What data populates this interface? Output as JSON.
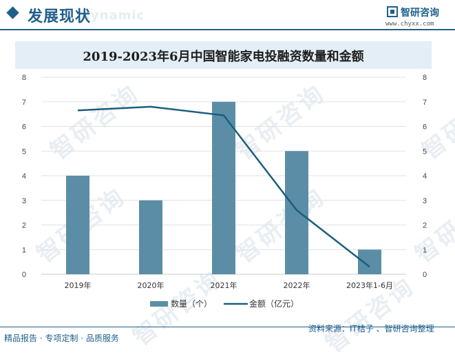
{
  "header": {
    "title": "发展现状",
    "watermark": "dynamic",
    "brand_name": "智研咨询",
    "brand_url": "www.chyxx.com"
  },
  "watermark_text": "智研咨询",
  "footer": {
    "left": "精品报告 · 专项定制 · 品质服务",
    "right": "资料来源：IT桔子 、智研咨询整理"
  },
  "colors": {
    "bar": "#5b8ea6",
    "line": "#1b5e7e",
    "brand": "#1f5f8b"
  },
  "chart_data": {
    "type": "bar",
    "title": "2019-2023年6月中国智能家电投融资数量和金额",
    "categories": [
      "2019年",
      "2020年",
      "2021年",
      "2022年",
      "2023年1-6月"
    ],
    "series": [
      {
        "name": "数量（个）",
        "type": "bar",
        "axis": "left",
        "values": [
          4,
          3,
          7,
          5,
          1
        ]
      },
      {
        "name": "金额（亿元）",
        "type": "line",
        "axis": "right",
        "values": [
          6.65,
          6.8,
          6.45,
          2.6,
          0.3
        ]
      }
    ],
    "ylim": [
      0,
      8
    ],
    "y2lim": [
      0,
      8
    ],
    "yticks": [
      "0",
      "1",
      "2",
      "3",
      "4",
      "5",
      "6",
      "7",
      "8"
    ],
    "y2ticks": [
      "0",
      "1",
      "2",
      "3",
      "4",
      "5",
      "6",
      "7",
      "8"
    ],
    "grid": true,
    "legend_position": "bottom"
  }
}
